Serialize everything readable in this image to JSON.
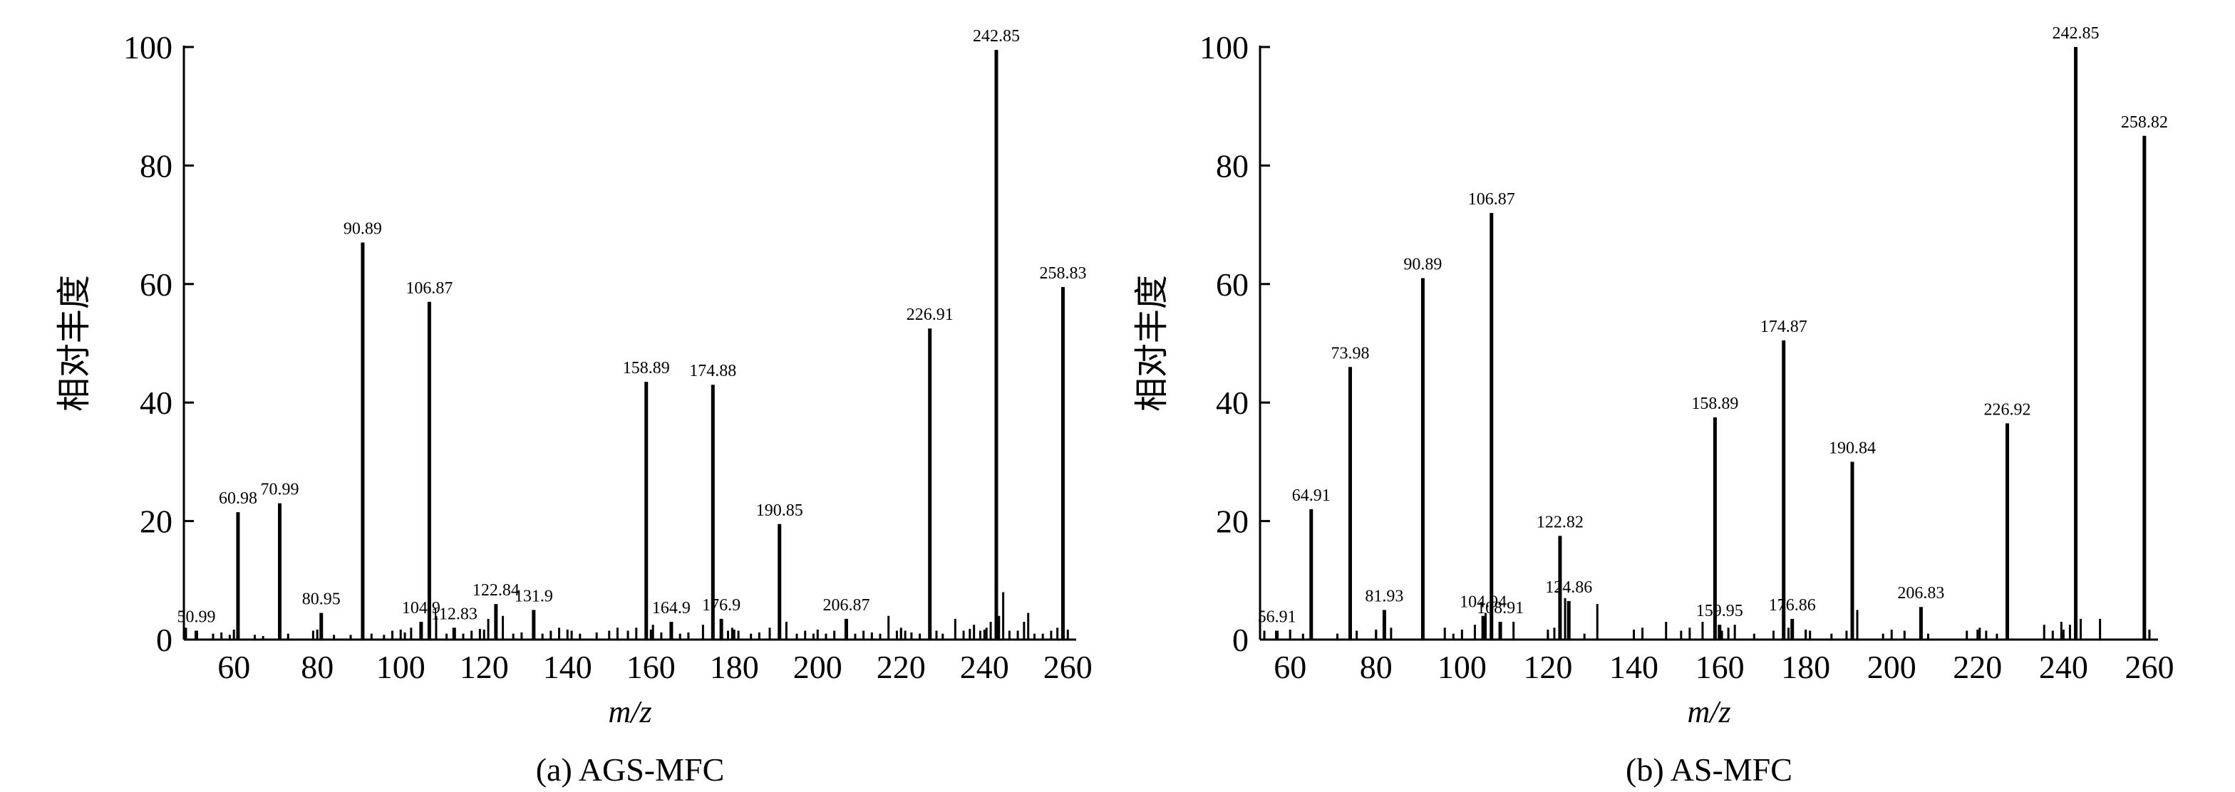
{
  "chart_data": [
    {
      "type": "bar",
      "caption": "(a) AGS-MFC",
      "xlabel": "m/z",
      "ylabel": "相对丰度",
      "xlim": [
        48,
        262
      ],
      "ylim": [
        0,
        100
      ],
      "xticks": [
        "60",
        "80",
        "100",
        "120",
        "140",
        "160",
        "180",
        "200",
        "220",
        "240",
        "260"
      ],
      "yticks": [
        "0",
        "20",
        "40",
        "60",
        "80",
        "100"
      ],
      "peaks": [
        {
          "x": 50.99,
          "y": 1.5,
          "label": "50.99"
        },
        {
          "x": 60.98,
          "y": 21.5,
          "label": "60.98"
        },
        {
          "x": 70.99,
          "y": 23,
          "label": "70.99"
        },
        {
          "x": 80.95,
          "y": 4.5,
          "label": "80.95"
        },
        {
          "x": 90.89,
          "y": 67,
          "label": "90.89"
        },
        {
          "x": 104.9,
          "y": 3,
          "label": "104.9"
        },
        {
          "x": 106.87,
          "y": 57,
          "label": "106.87"
        },
        {
          "x": 112.83,
          "y": 2,
          "label": "112.83"
        },
        {
          "x": 122.84,
          "y": 6,
          "label": "122.84"
        },
        {
          "x": 131.9,
          "y": 5,
          "label": "131.9"
        },
        {
          "x": 158.89,
          "y": 43.5,
          "label": "158.89"
        },
        {
          "x": 164.9,
          "y": 3,
          "label": "164.9"
        },
        {
          "x": 174.88,
          "y": 43,
          "label": "174.88"
        },
        {
          "x": 176.9,
          "y": 3.5,
          "label": "176.9"
        },
        {
          "x": 190.85,
          "y": 19.5,
          "label": "190.85"
        },
        {
          "x": 206.87,
          "y": 3.5,
          "label": "206.87"
        },
        {
          "x": 226.91,
          "y": 52.5,
          "label": "226.91"
        },
        {
          "x": 242.85,
          "y": 99.5,
          "label": "242.85"
        },
        {
          "x": 258.83,
          "y": 59.5,
          "label": "258.83"
        }
      ],
      "minor_peaks": [
        {
          "x": 48.5,
          "y": 2
        },
        {
          "x": 55,
          "y": 1
        },
        {
          "x": 57,
          "y": 1.2
        },
        {
          "x": 59,
          "y": 0.8
        },
        {
          "x": 65,
          "y": 0.8
        },
        {
          "x": 67,
          "y": 0.6
        },
        {
          "x": 73,
          "y": 1
        },
        {
          "x": 79,
          "y": 1.5
        },
        {
          "x": 84,
          "y": 0.8
        },
        {
          "x": 88,
          "y": 0.8
        },
        {
          "x": 93,
          "y": 1
        },
        {
          "x": 96,
          "y": 0.8
        },
        {
          "x": 98,
          "y": 1.5
        },
        {
          "x": 101,
          "y": 1.2
        },
        {
          "x": 102.5,
          "y": 2
        },
        {
          "x": 108.5,
          "y": 4
        },
        {
          "x": 111,
          "y": 1
        },
        {
          "x": 115,
          "y": 1
        },
        {
          "x": 117,
          "y": 1.5
        },
        {
          "x": 119,
          "y": 1.8
        },
        {
          "x": 121,
          "y": 3.5
        },
        {
          "x": 124.5,
          "y": 4
        },
        {
          "x": 127,
          "y": 1
        },
        {
          "x": 129,
          "y": 1.2
        },
        {
          "x": 134,
          "y": 1
        },
        {
          "x": 136,
          "y": 1.5
        },
        {
          "x": 138,
          "y": 2
        },
        {
          "x": 141,
          "y": 1.5
        },
        {
          "x": 143,
          "y": 1
        },
        {
          "x": 147,
          "y": 1.2
        },
        {
          "x": 150,
          "y": 1.5
        },
        {
          "x": 152,
          "y": 2
        },
        {
          "x": 154.5,
          "y": 1.5
        },
        {
          "x": 156.5,
          "y": 2
        },
        {
          "x": 160.5,
          "y": 2.5
        },
        {
          "x": 162.5,
          "y": 1.2
        },
        {
          "x": 167,
          "y": 1
        },
        {
          "x": 169,
          "y": 1.2
        },
        {
          "x": 172.5,
          "y": 2.5
        },
        {
          "x": 178.5,
          "y": 1.5
        },
        {
          "x": 179.5,
          "y": 2
        },
        {
          "x": 181,
          "y": 1.5
        },
        {
          "x": 184,
          "y": 1
        },
        {
          "x": 186,
          "y": 1.2
        },
        {
          "x": 188.5,
          "y": 2
        },
        {
          "x": 192.5,
          "y": 3
        },
        {
          "x": 195,
          "y": 1
        },
        {
          "x": 197,
          "y": 1.5
        },
        {
          "x": 199,
          "y": 1
        },
        {
          "x": 202,
          "y": 1
        },
        {
          "x": 204,
          "y": 1.5
        },
        {
          "x": 209,
          "y": 1
        },
        {
          "x": 211,
          "y": 1.5
        },
        {
          "x": 213,
          "y": 1.2
        },
        {
          "x": 215,
          "y": 1
        },
        {
          "x": 217,
          "y": 4
        },
        {
          "x": 219,
          "y": 1.5
        },
        {
          "x": 220,
          "y": 2
        },
        {
          "x": 221,
          "y": 1.5
        },
        {
          "x": 222.5,
          "y": 1.2
        },
        {
          "x": 224.5,
          "y": 1
        },
        {
          "x": 228.5,
          "y": 1.5
        },
        {
          "x": 230,
          "y": 1
        },
        {
          "x": 233,
          "y": 3.5
        },
        {
          "x": 235,
          "y": 1.5
        },
        {
          "x": 236.5,
          "y": 1.8
        },
        {
          "x": 237.5,
          "y": 2.5
        },
        {
          "x": 239,
          "y": 1.5
        },
        {
          "x": 240.5,
          "y": 2
        },
        {
          "x": 241.5,
          "y": 3
        },
        {
          "x": 243.5,
          "y": 4
        },
        {
          "x": 244.5,
          "y": 8
        },
        {
          "x": 246,
          "y": 1.5
        },
        {
          "x": 248,
          "y": 1.5
        },
        {
          "x": 249.5,
          "y": 3
        },
        {
          "x": 250.5,
          "y": 4.5
        },
        {
          "x": 252,
          "y": 1
        },
        {
          "x": 254,
          "y": 1
        },
        {
          "x": 256,
          "y": 1.5
        },
        {
          "x": 257.5,
          "y": 2
        }
      ]
    },
    {
      "type": "bar",
      "caption": "(b) AS-MFC",
      "xlabel": "m/z",
      "ylabel": "相对丰度",
      "xlim": [
        53,
        262
      ],
      "ylim": [
        0,
        100
      ],
      "xticks": [
        "60",
        "80",
        "100",
        "120",
        "140",
        "160",
        "180",
        "200",
        "220",
        "240",
        "260"
      ],
      "yticks": [
        "0",
        "20",
        "40",
        "60",
        "80",
        "100"
      ],
      "peaks": [
        {
          "x": 56.91,
          "y": 1.5,
          "label": "56.91"
        },
        {
          "x": 64.91,
          "y": 22,
          "label": "64.91"
        },
        {
          "x": 73.98,
          "y": 46,
          "label": "73.98"
        },
        {
          "x": 81.93,
          "y": 5,
          "label": "81.93"
        },
        {
          "x": 90.89,
          "y": 61,
          "label": "90.89"
        },
        {
          "x": 104.94,
          "y": 4,
          "label": "104.94"
        },
        {
          "x": 106.87,
          "y": 72,
          "label": "106.87"
        },
        {
          "x": 108.91,
          "y": 3,
          "label": "108.91"
        },
        {
          "x": 122.82,
          "y": 17.5,
          "label": "122.82"
        },
        {
          "x": 124.86,
          "y": 6.5,
          "label": "124.86"
        },
        {
          "x": 158.89,
          "y": 37.5,
          "label": "158.89"
        },
        {
          "x": 159.95,
          "y": 2.5,
          "label": "159.95"
        },
        {
          "x": 174.87,
          "y": 50.5,
          "label": "174.87"
        },
        {
          "x": 176.86,
          "y": 3.5,
          "label": "176.86"
        },
        {
          "x": 190.84,
          "y": 30,
          "label": "190.84"
        },
        {
          "x": 206.83,
          "y": 5.5,
          "label": "206.83"
        },
        {
          "x": 226.92,
          "y": 36.5,
          "label": "226.92"
        },
        {
          "x": 242.85,
          "y": 100,
          "label": "242.85"
        },
        {
          "x": 258.82,
          "y": 85,
          "label": "258.82"
        }
      ],
      "minor_peaks": [
        {
          "x": 54,
          "y": 1.5
        },
        {
          "x": 63,
          "y": 1
        },
        {
          "x": 71,
          "y": 1
        },
        {
          "x": 75.5,
          "y": 1.5
        },
        {
          "x": 80,
          "y": 1.5
        },
        {
          "x": 83.5,
          "y": 2
        },
        {
          "x": 96,
          "y": 2
        },
        {
          "x": 98,
          "y": 1
        },
        {
          "x": 103,
          "y": 2.5
        },
        {
          "x": 105.5,
          "y": 4.5
        },
        {
          "x": 112,
          "y": 3
        },
        {
          "x": 120,
          "y": 1
        },
        {
          "x": 121.5,
          "y": 2
        },
        {
          "x": 124,
          "y": 7
        },
        {
          "x": 128.5,
          "y": 1
        },
        {
          "x": 131.5,
          "y": 6
        },
        {
          "x": 140,
          "y": 1
        },
        {
          "x": 142,
          "y": 2
        },
        {
          "x": 147.5,
          "y": 3
        },
        {
          "x": 151,
          "y": 1.5
        },
        {
          "x": 153,
          "y": 2
        },
        {
          "x": 156,
          "y": 3
        },
        {
          "x": 160.5,
          "y": 1.5
        },
        {
          "x": 162,
          "y": 2
        },
        {
          "x": 163.5,
          "y": 2.5
        },
        {
          "x": 168,
          "y": 1
        },
        {
          "x": 172.5,
          "y": 1.5
        },
        {
          "x": 176,
          "y": 2
        },
        {
          "x": 180,
          "y": 1.5
        },
        {
          "x": 181,
          "y": 1.5
        },
        {
          "x": 186,
          "y": 1
        },
        {
          "x": 189.5,
          "y": 1.5
        },
        {
          "x": 192,
          "y": 5
        },
        {
          "x": 198,
          "y": 1
        },
        {
          "x": 203,
          "y": 1.5
        },
        {
          "x": 208.5,
          "y": 1
        },
        {
          "x": 217.5,
          "y": 1.5
        },
        {
          "x": 220.5,
          "y": 2
        },
        {
          "x": 222,
          "y": 1.5
        },
        {
          "x": 224.5,
          "y": 1
        },
        {
          "x": 235.5,
          "y": 2.5
        },
        {
          "x": 237.5,
          "y": 1.5
        },
        {
          "x": 239.5,
          "y": 3
        },
        {
          "x": 241.5,
          "y": 2.5
        },
        {
          "x": 244,
          "y": 3.5
        },
        {
          "x": 248.5,
          "y": 3.5
        },
        {
          "x": 260,
          "y": 1.5
        }
      ]
    }
  ]
}
